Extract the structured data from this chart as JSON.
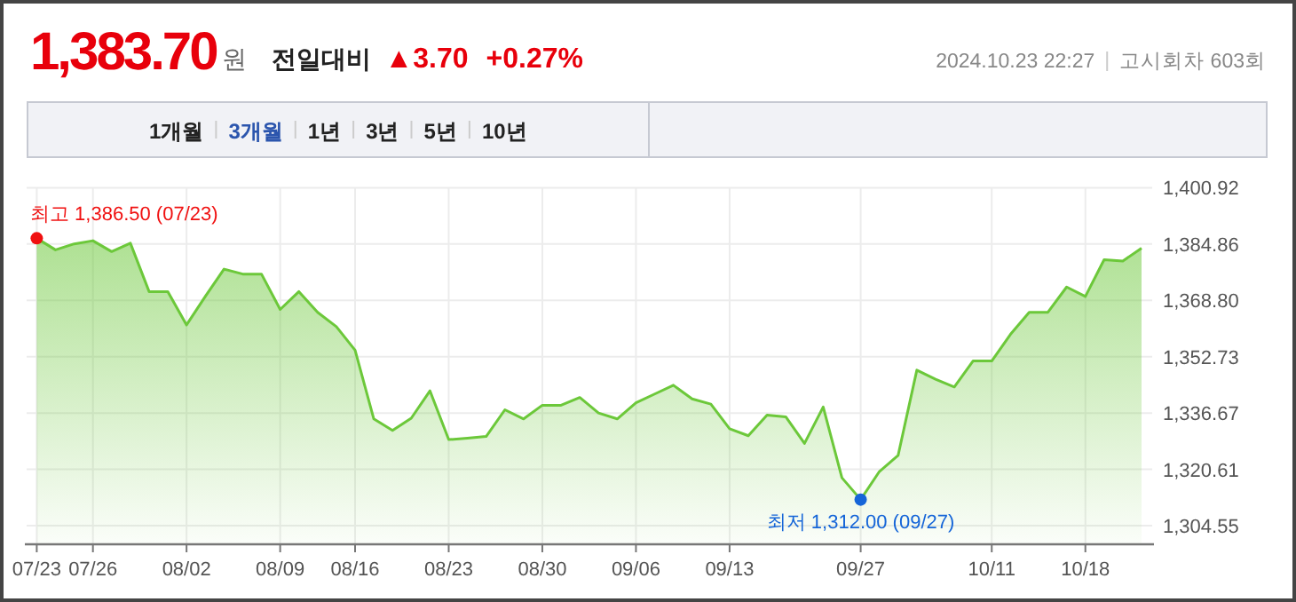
{
  "chart_data": {
    "type": "area",
    "title": "1,383.70",
    "annotations": [
      "원",
      "전일대비",
      "▲3.70",
      "+0.27%",
      "2024.10.23 22:27",
      "고시회차 603회",
      "1개월",
      "3개월",
      "1년",
      "3년",
      "5년",
      "10년",
      {
        "text": "최고 1,386.50 (07/23)",
        "x": "07/23",
        "y": 1386.5
      },
      {
        "text": "최저 1,312.00 (09/27)",
        "x": "09/27",
        "y": 1312.0
      }
    ],
    "categories": [
      "07/23",
      null,
      null,
      "07/26",
      null,
      null,
      null,
      null,
      "08/02",
      null,
      null,
      null,
      null,
      "08/09",
      null,
      null,
      null,
      "08/16",
      null,
      null,
      null,
      null,
      "08/23",
      null,
      null,
      null,
      null,
      "08/30",
      null,
      null,
      null,
      null,
      "09/06",
      null,
      null,
      null,
      null,
      "09/13",
      null,
      null,
      null,
      null,
      null,
      null,
      "09/27",
      null,
      null,
      null,
      null,
      null,
      null,
      "10/11",
      null,
      null,
      null,
      null,
      "10/18",
      null,
      null,
      null
    ],
    "series": [
      {
        "color": "#6cc83a",
        "values": [
          1386.5,
          1383.2,
          1384.9,
          1385.8,
          1382.7,
          1385.1,
          1371.3,
          1371.3,
          1361.8,
          1369.9,
          1377.7,
          1376.3,
          1376.3,
          1366.2,
          1371.3,
          1365.4,
          1361.3,
          1354.6,
          1335.0,
          1331.7,
          1335.2,
          1343.0,
          1329.1,
          1329.5,
          1330.0,
          1337.6,
          1335.0,
          1338.9,
          1338.9,
          1341.1,
          1336.7,
          1335.0,
          1339.6,
          1342.1,
          1344.6,
          1340.7,
          1339.2,
          1332.2,
          1330.2,
          1336.1,
          1335.6,
          1328.0,
          1338.4,
          1318.2,
          1312.0,
          1320.0,
          1324.6,
          1348.9,
          1346.3,
          1344.1,
          1351.5,
          1351.5,
          1359.1,
          1365.4,
          1365.4,
          1372.6,
          1369.9,
          1380.4,
          1380.0,
          1383.7
        ]
      }
    ],
    "ylim": [
      1299.5,
      1400.92
    ],
    "yticks": [
      {
        "value": 1304.55,
        "label": "1,304.55"
      },
      {
        "value": 1320.61,
        "label": "1,320.61"
      },
      {
        "value": 1336.67,
        "label": "1,336.67"
      },
      {
        "value": 1352.73,
        "label": "1,352.73"
      },
      {
        "value": 1368.8,
        "label": "1,368.80"
      },
      {
        "value": 1384.86,
        "label": "1,384.86"
      },
      {
        "value": 1400.92,
        "label": "1,400.92"
      }
    ],
    "grid": true
  }
}
